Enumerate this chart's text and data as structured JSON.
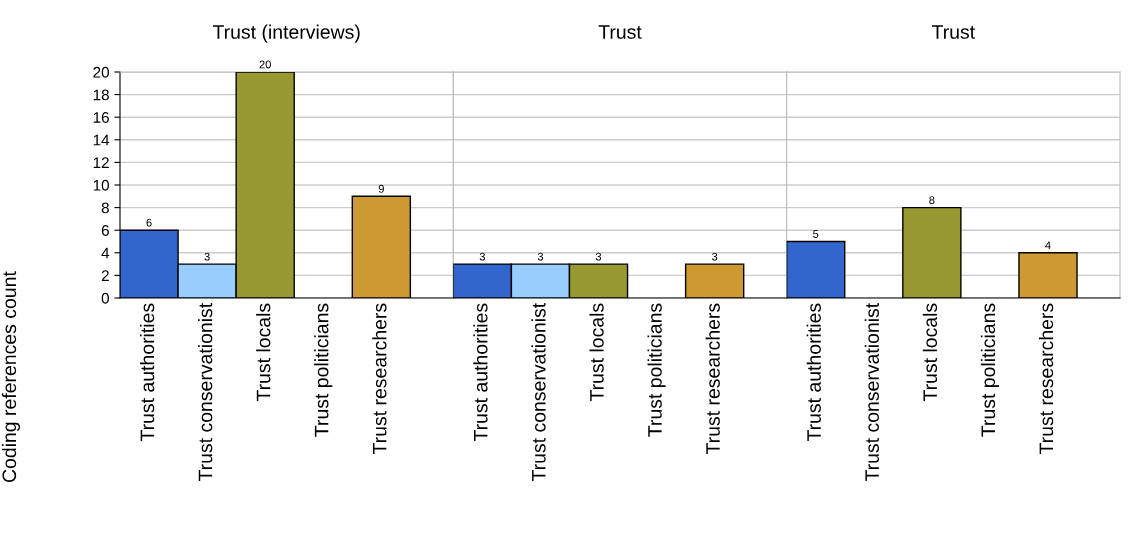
{
  "chart_data": [
    {
      "type": "bar",
      "title": "Trust (interviews)",
      "ylabel": "Coding references count",
      "categories": [
        "Trust authorities",
        "Trust conservationist",
        "Trust locals",
        "Trust politicians",
        "Trust researchers"
      ],
      "values": [
        6,
        3,
        20,
        null,
        9
      ],
      "colors": [
        "#3366cc",
        "#99ccff",
        "#999933",
        "#999999",
        "#cc9933"
      ],
      "ylim": [
        0,
        20
      ],
      "yticks": [
        0,
        2,
        4,
        6,
        8,
        10,
        12,
        14,
        16,
        18,
        20
      ],
      "grid": "y",
      "data_labels": true
    },
    {
      "type": "bar",
      "title": "Trust",
      "categories": [
        "Trust authorities",
        "Trust conservationist",
        "Trust locals",
        "Trust politicians",
        "Trust researchers"
      ],
      "values": [
        3,
        3,
        3,
        null,
        3
      ],
      "colors": [
        "#3366cc",
        "#99ccff",
        "#999933",
        "#999999",
        "#cc9933"
      ],
      "ylim": [
        0,
        20
      ],
      "yticks": [
        0,
        2,
        4,
        6,
        8,
        10,
        12,
        14,
        16,
        18,
        20
      ],
      "grid": "y",
      "data_labels": true,
      "tick_labels": "x"
    },
    {
      "type": "bar",
      "title": "Trust",
      "categories": [
        "Trust authorities",
        "Trust conservationist",
        "Trust locals",
        "Trust politicians",
        "Trust researchers"
      ],
      "values": [
        5,
        null,
        8,
        null,
        4
      ],
      "colors": [
        "#3366cc",
        "#99ccff",
        "#999933",
        "#999999",
        "#cc9933"
      ],
      "ylim": [
        0,
        20
      ],
      "yticks": [
        0,
        2,
        4,
        6,
        8,
        10,
        12,
        14,
        16,
        18,
        20
      ],
      "grid": "y",
      "data_labels": true,
      "tick_labels": "x"
    }
  ]
}
